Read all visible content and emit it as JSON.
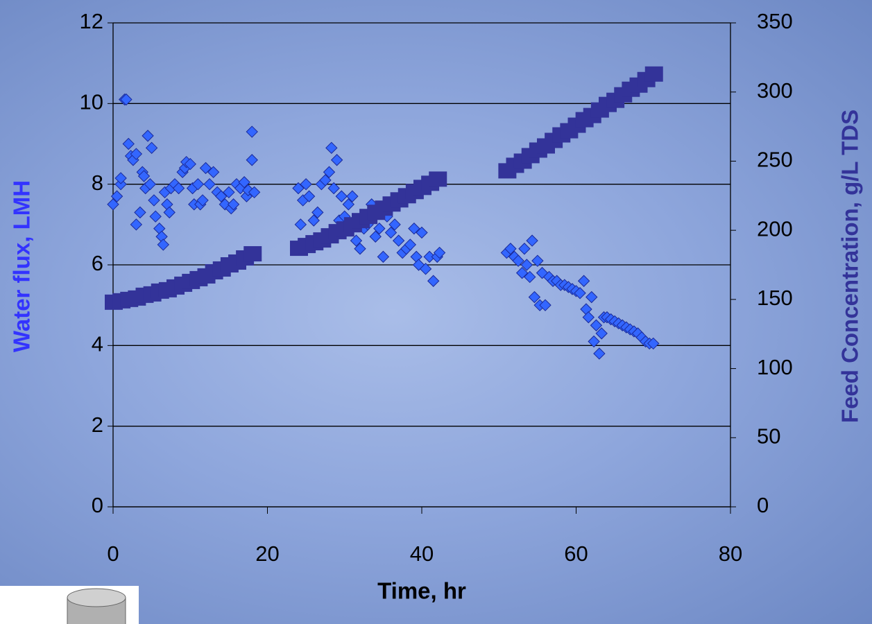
{
  "chart_data": {
    "type": "scatter",
    "x_label": "Time, hr",
    "y_label": "Water flux, LMH",
    "y2_label": "Feed Concentration, g/L TDS",
    "xlim": [
      0,
      80
    ],
    "xticks": [
      0,
      20,
      40,
      60,
      80
    ],
    "ylim": [
      0,
      12
    ],
    "yticks": [
      0,
      2,
      4,
      6,
      8,
      10,
      12
    ],
    "y2lim": [
      0,
      350
    ],
    "y2ticks": [
      0,
      50,
      100,
      150,
      200,
      250,
      300,
      350
    ],
    "grid": true,
    "series": [
      {
        "color": "#3366ff",
        "marker": "diamond",
        "x": [
          0,
          0.5,
          1,
          1,
          1.5,
          1.7,
          2,
          2.3,
          2.6,
          3,
          3,
          3.5,
          3.8,
          4,
          4.2,
          4.5,
          4.8,
          5,
          5.3,
          5.5,
          6,
          6.3,
          6.5,
          6.7,
          7,
          7.3,
          7.5,
          8,
          8.5,
          9,
          9.3,
          9.5,
          10,
          10.3,
          10.5,
          11,
          11.3,
          11.6,
          12,
          12.5,
          13,
          13.5,
          14,
          14.5,
          15,
          15.3,
          15.6,
          16,
          16.5,
          17,
          17.3,
          17.5,
          18,
          18,
          18.3,
          24,
          24.3,
          24.6,
          25,
          25.4,
          26,
          26.5,
          27,
          27.5,
          28,
          28.3,
          28.6,
          29,
          29.3,
          29.6,
          30,
          30.5,
          31,
          31.5,
          32,
          32.5,
          33,
          33.5,
          34,
          34.5,
          35,
          35.5,
          36,
          36.5,
          37,
          37.5,
          38,
          38.5,
          39,
          39.3,
          39.6,
          40,
          40.5,
          41,
          41.5,
          42,
          42.3,
          51,
          51.5,
          52,
          52.5,
          53,
          53.3,
          53.6,
          54,
          54.3,
          54.6,
          55,
          55.3,
          55.6,
          56,
          56.5,
          57,
          57.5,
          58,
          58.5,
          59,
          59.5,
          60,
          60.5,
          61,
          61.3,
          61.6,
          62,
          62.3,
          62.6,
          63,
          63.3,
          63.6,
          64,
          64.5,
          65,
          65.5,
          66,
          66.5,
          67,
          67.5,
          68,
          68.5,
          69,
          69.5,
          70
        ],
        "values": [
          7.5,
          7.7,
          8.0,
          8.15,
          10.1,
          10.1,
          9.0,
          8.7,
          8.6,
          8.75,
          7.0,
          7.3,
          8.3,
          8.2,
          7.9,
          9.2,
          8.0,
          8.9,
          7.6,
          7.2,
          6.9,
          6.7,
          6.5,
          7.8,
          7.5,
          7.3,
          7.9,
          8.0,
          7.9,
          8.3,
          8.4,
          8.55,
          8.5,
          7.9,
          7.5,
          8.0,
          7.5,
          7.6,
          8.4,
          8.0,
          8.3,
          7.8,
          7.7,
          7.5,
          7.8,
          7.4,
          7.5,
          8.0,
          7.9,
          8.05,
          7.7,
          7.85,
          9.3,
          8.6,
          7.8,
          7.9,
          7.0,
          7.6,
          8.0,
          7.7,
          7.1,
          7.3,
          8.0,
          8.1,
          8.3,
          8.9,
          7.9,
          8.6,
          7.1,
          7.7,
          7.2,
          7.5,
          7.7,
          6.6,
          6.4,
          6.9,
          7.0,
          7.5,
          6.7,
          6.9,
          6.2,
          7.2,
          6.8,
          7.0,
          6.6,
          6.3,
          6.4,
          6.5,
          6.9,
          6.2,
          6.0,
          6.8,
          5.9,
          6.2,
          5.6,
          6.2,
          6.3,
          6.3,
          6.4,
          6.2,
          6.1,
          5.8,
          6.4,
          6.0,
          5.7,
          6.6,
          5.2,
          6.1,
          5.0,
          5.8,
          5.0,
          5.7,
          5.6,
          5.6,
          5.5,
          5.5,
          5.45,
          5.4,
          5.35,
          5.3,
          5.6,
          4.9,
          4.7,
          5.2,
          4.1,
          4.5,
          3.8,
          4.3,
          4.7,
          4.7,
          4.65,
          4.6,
          4.55,
          4.5,
          4.45,
          4.4,
          4.35,
          4.3,
          4.2,
          4.1,
          4.05,
          4.05
        ]
      },
      {
        "color": "#333399",
        "marker": "square",
        "axis": "y2",
        "x": [
          0,
          1,
          2,
          3,
          4,
          5,
          6,
          7,
          8,
          9,
          10,
          11,
          12,
          13,
          14,
          15,
          16,
          17,
          18,
          24,
          25,
          26,
          27,
          28,
          29,
          30,
          31,
          32,
          33,
          34,
          35,
          36,
          37,
          38,
          39,
          40,
          41,
          42,
          51,
          52,
          53,
          54,
          55,
          56,
          57,
          58,
          59,
          60,
          61,
          62,
          63,
          64,
          65,
          66,
          67,
          68,
          69,
          70
        ],
        "values": [
          148,
          149,
          150,
          151,
          153,
          154,
          156,
          157,
          159,
          161,
          163,
          165,
          167,
          170,
          172,
          175,
          177,
          180,
          183,
          187,
          189,
          191,
          193,
          196,
          199,
          201,
          204,
          207,
          210,
          213,
          216,
          219,
          222,
          225,
          228,
          231,
          234,
          237,
          243,
          247,
          250,
          254,
          258,
          261,
          265,
          269,
          272,
          276,
          280,
          283,
          287,
          291,
          294,
          298,
          302,
          305,
          309,
          313
        ]
      }
    ]
  }
}
